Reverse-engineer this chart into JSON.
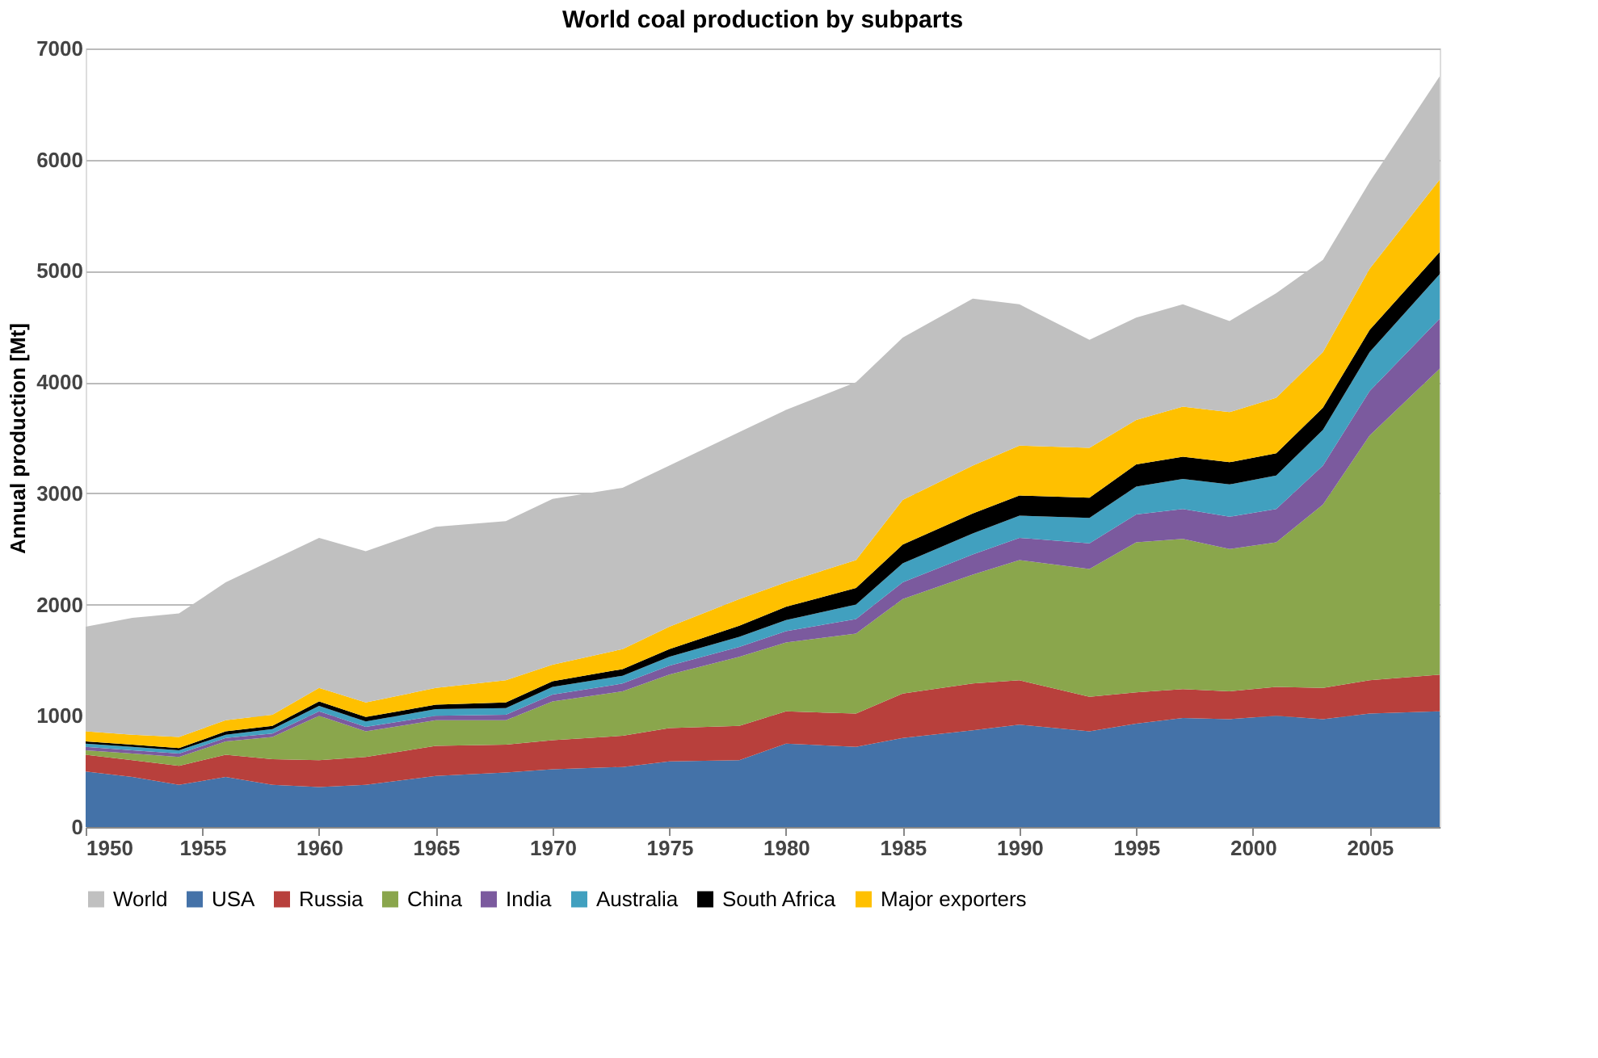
{
  "chart_data": {
    "type": "area",
    "stacked": true,
    "title": "World coal production by subparts",
    "ylabel": "Annual production  [Mt]",
    "x": [
      1950,
      1952,
      1954,
      1956,
      1958,
      1960,
      1962,
      1965,
      1968,
      1970,
      1973,
      1975,
      1978,
      1980,
      1983,
      1985,
      1988,
      1990,
      1993,
      1995,
      1997,
      1999,
      2001,
      2003,
      2005,
      2008
    ],
    "series": [
      {
        "name": "USA",
        "color": "#4472a8",
        "values": [
          500,
          450,
          380,
          450,
          380,
          360,
          380,
          460,
          490,
          520,
          540,
          590,
          600,
          750,
          720,
          800,
          870,
          920,
          860,
          930,
          980,
          970,
          1000,
          970,
          1020,
          1040
        ]
      },
      {
        "name": "Russia",
        "color": "#b8403c",
        "values": [
          150,
          150,
          170,
          200,
          230,
          240,
          250,
          270,
          250,
          260,
          280,
          300,
          310,
          290,
          300,
          400,
          420,
          400,
          310,
          280,
          260,
          250,
          260,
          280,
          300,
          330
        ]
      },
      {
        "name": "China",
        "color": "#8aa64c",
        "values": [
          40,
          60,
          80,
          120,
          200,
          400,
          230,
          230,
          220,
          350,
          400,
          480,
          620,
          620,
          720,
          850,
          980,
          1080,
          1150,
          1350,
          1350,
          1280,
          1300,
          1650,
          2200,
          2750
        ]
      },
      {
        "name": "India",
        "color": "#7b5a9e",
        "values": [
          30,
          30,
          30,
          30,
          30,
          40,
          40,
          40,
          50,
          60,
          70,
          80,
          90,
          100,
          130,
          150,
          180,
          200,
          230,
          250,
          270,
          290,
          300,
          350,
          400,
          450
        ]
      },
      {
        "name": "Australia",
        "color": "#41a0bf",
        "values": [
          30,
          30,
          30,
          30,
          40,
          50,
          50,
          60,
          60,
          70,
          70,
          80,
          90,
          100,
          130,
          170,
          190,
          200,
          230,
          250,
          270,
          290,
          300,
          320,
          350,
          400
        ]
      },
      {
        "name": "South Africa",
        "color": "#000000",
        "values": [
          20,
          20,
          20,
          30,
          30,
          40,
          40,
          40,
          50,
          50,
          60,
          70,
          100,
          120,
          150,
          170,
          180,
          180,
          180,
          200,
          200,
          200,
          200,
          200,
          200,
          200
        ]
      },
      {
        "name": "Major exporters",
        "color": "#ffc000",
        "values": [
          90,
          90,
          100,
          100,
          100,
          120,
          130,
          150,
          200,
          150,
          180,
          200,
          240,
          220,
          250,
          400,
          430,
          450,
          450,
          400,
          450,
          450,
          500,
          500,
          550,
          650
        ]
      },
      {
        "name": "World",
        "color": "#c0c0c0",
        "values": [
          940,
          1050,
          1110,
          1240,
          1390,
          1350,
          1360,
          1450,
          1430,
          1490,
          1450,
          1450,
          1500,
          1550,
          1600,
          1460,
          1500,
          1270,
          970,
          920,
          920,
          820,
          940,
          830,
          780,
          930
        ]
      }
    ],
    "xlim": [
      1950,
      2008
    ],
    "xticks": [
      1950,
      1955,
      1960,
      1965,
      1970,
      1975,
      1980,
      1985,
      1990,
      1995,
      2000,
      2005
    ],
    "ylim": [
      0,
      7000
    ],
    "yticks": [
      0,
      1000,
      2000,
      3000,
      4000,
      5000,
      6000,
      7000
    ],
    "grid": "y",
    "legend": "bottom"
  }
}
